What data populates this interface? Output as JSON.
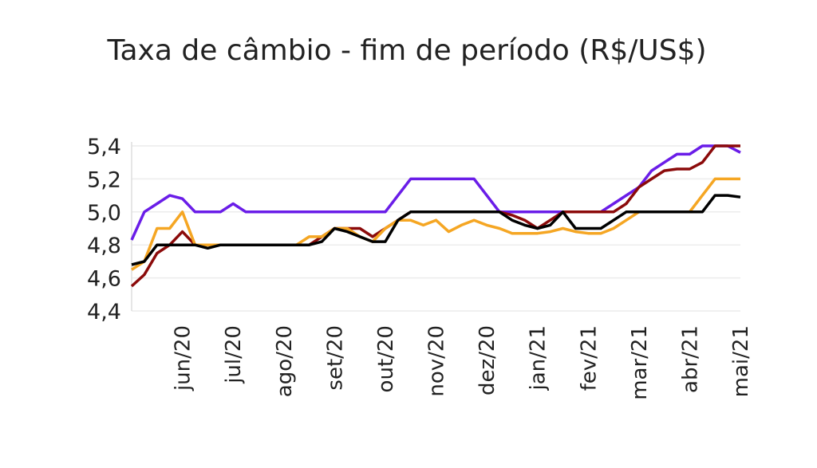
{
  "chart_data": {
    "type": "line",
    "title": "Taxa de câmbio - fim de período (R$/US$)",
    "categories": [
      null,
      null,
      null,
      null,
      "jun/20",
      null,
      null,
      null,
      "jul/20",
      null,
      null,
      null,
      "ago/20",
      null,
      null,
      null,
      "set/20",
      null,
      null,
      null,
      "out/20",
      null,
      null,
      null,
      "nov/20",
      null,
      null,
      null,
      "dez/20",
      null,
      null,
      null,
      "jan/21",
      null,
      null,
      null,
      "fev/21",
      null,
      null,
      null,
      "mar/21",
      null,
      null,
      null,
      "abr/21",
      null,
      null,
      null,
      "mai/21"
    ],
    "series": [
      {
        "color": "#6a1de8",
        "values": [
          4.83,
          5.0,
          5.05,
          5.1,
          5.08,
          5.0,
          5.0,
          5.0,
          5.05,
          5.0,
          5.0,
          5.0,
          5.0,
          5.0,
          5.0,
          5.0,
          5.0,
          5.0,
          5.0,
          5.0,
          5.0,
          5.1,
          5.2,
          5.2,
          5.2,
          5.2,
          5.2,
          5.2,
          5.1,
          5.0,
          5.0,
          5.0,
          5.0,
          5.0,
          5.0,
          5.0,
          5.0,
          5.0,
          5.05,
          5.1,
          5.15,
          5.25,
          5.3,
          5.35,
          5.35,
          5.4,
          5.4,
          5.4,
          5.36
        ]
      },
      {
        "color": "#8b0a0a",
        "values": [
          4.55,
          4.62,
          4.75,
          4.8,
          4.88,
          4.8,
          4.8,
          4.8,
          4.8,
          4.8,
          4.8,
          4.8,
          4.8,
          4.8,
          4.8,
          4.85,
          4.9,
          4.9,
          4.9,
          4.85,
          4.9,
          4.95,
          5.0,
          5.0,
          5.0,
          5.0,
          5.0,
          5.0,
          5.0,
          5.0,
          4.98,
          4.95,
          4.9,
          4.95,
          5.0,
          5.0,
          5.0,
          5.0,
          5.0,
          5.05,
          5.15,
          5.2,
          5.25,
          5.26,
          5.26,
          5.3,
          5.4,
          5.4,
          5.4
        ]
      },
      {
        "color": "#f5a623",
        "values": [
          4.65,
          4.7,
          4.9,
          4.9,
          5.0,
          4.8,
          4.8,
          4.8,
          4.8,
          4.8,
          4.8,
          4.8,
          4.8,
          4.8,
          4.85,
          4.85,
          4.9,
          4.9,
          4.85,
          4.82,
          4.9,
          4.95,
          4.95,
          4.92,
          4.95,
          4.88,
          4.92,
          4.95,
          4.92,
          4.9,
          4.87,
          4.87,
          4.87,
          4.88,
          4.9,
          4.88,
          4.87,
          4.87,
          4.9,
          4.95,
          5.0,
          5.0,
          5.0,
          5.0,
          5.0,
          5.1,
          5.2,
          5.2,
          5.2
        ]
      },
      {
        "color": "#000000",
        "values": [
          4.68,
          4.7,
          4.8,
          4.8,
          4.8,
          4.8,
          4.78,
          4.8,
          4.8,
          4.8,
          4.8,
          4.8,
          4.8,
          4.8,
          4.8,
          4.82,
          4.9,
          4.88,
          4.85,
          4.82,
          4.82,
          4.95,
          5.0,
          5.0,
          5.0,
          5.0,
          5.0,
          5.0,
          5.0,
          5.0,
          4.95,
          4.92,
          4.9,
          4.92,
          5.0,
          4.9,
          4.9,
          4.9,
          4.95,
          5.0,
          5.0,
          5.0,
          5.0,
          5.0,
          5.0,
          5.0,
          5.1,
          5.1,
          5.09
        ]
      }
    ],
    "ylim": [
      4.4,
      5.4
    ],
    "yticks": [
      {
        "value": 4.4,
        "label": "4,4"
      },
      {
        "value": 4.6,
        "label": "4,6"
      },
      {
        "value": 4.8,
        "label": "4,8"
      },
      {
        "value": 5.0,
        "label": "5,0"
      },
      {
        "value": 5.2,
        "label": "5,2"
      },
      {
        "value": 5.4,
        "label": "5,4"
      }
    ],
    "grid": true
  }
}
